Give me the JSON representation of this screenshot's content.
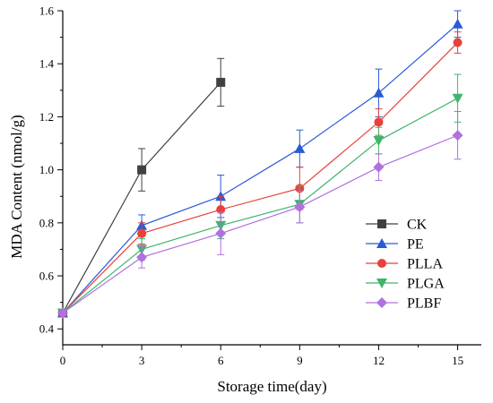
{
  "chart_data": {
    "type": "line",
    "xlabel": "Storage time(day)",
    "ylabel": "MDA Content (nmol/g)",
    "xlim": [
      0,
      15.9
    ],
    "ylim": [
      0.34,
      1.6
    ],
    "xticks": [
      0,
      3,
      6,
      9,
      12,
      15
    ],
    "yticks": [
      0.4,
      0.6,
      0.8,
      1.0,
      1.2,
      1.4,
      1.6
    ],
    "xtick_labels": [
      "0",
      "3",
      "6",
      "9",
      "12",
      "15"
    ],
    "ytick_labels": [
      "0.4",
      "0.6",
      "0.8",
      "1.0",
      "1.2",
      "1.4",
      "1.6"
    ],
    "legend_position": "lower-right",
    "grid": false,
    "series": [
      {
        "name": "CK",
        "color": "#404040",
        "marker": "square",
        "x": [
          0,
          3,
          6
        ],
        "y": [
          0.46,
          1.0,
          1.33
        ],
        "err": [
          0.01,
          0.08,
          0.09
        ]
      },
      {
        "name": "PE",
        "color": "#2a5bd7",
        "marker": "triangle-up",
        "x": [
          0,
          3,
          6,
          9,
          12,
          15
        ],
        "y": [
          0.46,
          0.79,
          0.9,
          1.08,
          1.29,
          1.55
        ],
        "err": [
          0.01,
          0.04,
          0.08,
          0.07,
          0.09,
          0.05
        ]
      },
      {
        "name": "PLLA",
        "color": "#e8413c",
        "marker": "circle",
        "x": [
          0,
          3,
          6,
          9,
          12,
          15
        ],
        "y": [
          0.46,
          0.76,
          0.85,
          0.93,
          1.18,
          1.48
        ],
        "err": [
          0.01,
          0.04,
          0.05,
          0.08,
          0.05,
          0.04
        ]
      },
      {
        "name": "PLGA",
        "color": "#3fb56e",
        "marker": "triangle-down",
        "x": [
          0,
          3,
          6,
          9,
          12,
          15
        ],
        "y": [
          0.46,
          0.7,
          0.79,
          0.87,
          1.11,
          1.27
        ],
        "err": [
          0.01,
          0.04,
          0.05,
          0.07,
          0.05,
          0.09
        ]
      },
      {
        "name": "PLBF",
        "color": "#b070e0",
        "marker": "diamond",
        "x": [
          0,
          3,
          6,
          9,
          12,
          15
        ],
        "y": [
          0.46,
          0.67,
          0.76,
          0.86,
          1.01,
          1.13
        ],
        "err": [
          0.01,
          0.04,
          0.08,
          0.06,
          0.05,
          0.09
        ]
      }
    ]
  }
}
